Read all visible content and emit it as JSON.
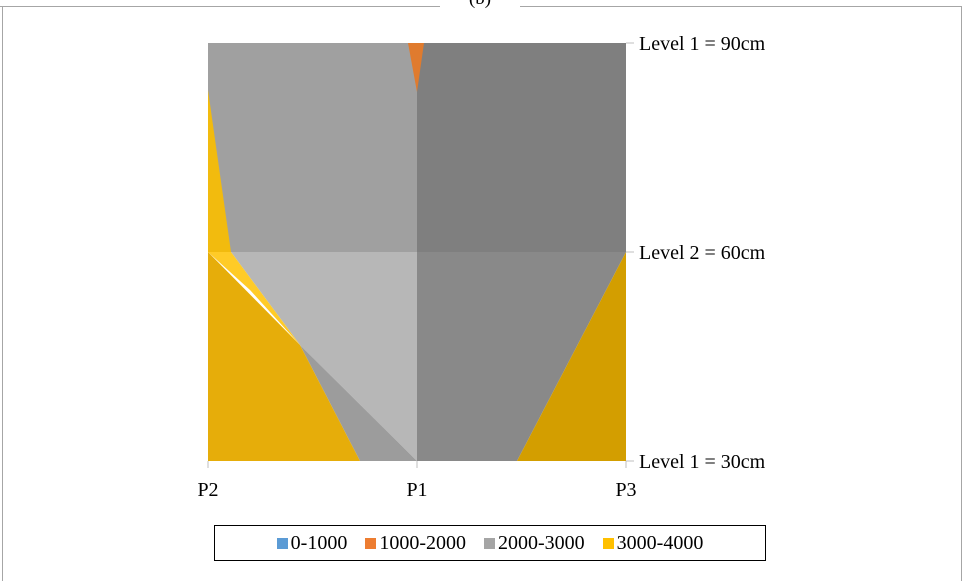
{
  "panel_title": "(b)",
  "chart_data": {
    "type": "area",
    "title": "(b)",
    "x_categories": [
      "P2",
      "P1",
      "P3"
    ],
    "y_levels": [
      "Level 1 = 30cm",
      "Level 2 = 60cm",
      "Level 1 = 90cm"
    ],
    "legend": [
      {
        "label": "0-1000",
        "color": "#5b9bd5"
      },
      {
        "label": "1000-2000",
        "color": "#ed7d31"
      },
      {
        "label": "2000-3000",
        "color": "#a5a5a5"
      },
      {
        "label": "3000-4000",
        "color": "#ffc000"
      }
    ],
    "legend_placement": "bottom",
    "grid": false,
    "regions": [
      {
        "range": "2000-3000",
        "panel": "P2-P1, 60-90cm"
      },
      {
        "range": "2000-3000",
        "panel": "P1-P3, 60-90cm"
      },
      {
        "range": "1000-2000",
        "panel": "near P1, top"
      },
      {
        "range": "3000-4000",
        "panel": "near P2, 60-90cm"
      },
      {
        "range": "2000-3000",
        "panel": "P2-P1, 30-60cm"
      },
      {
        "range": "3000-4000",
        "panel": "near P2, 30-60cm"
      },
      {
        "range": "2000-3000",
        "panel": "P1-P3, 30-60cm"
      },
      {
        "range": "3000-4000",
        "panel": "near P3, 30-60cm"
      }
    ]
  }
}
